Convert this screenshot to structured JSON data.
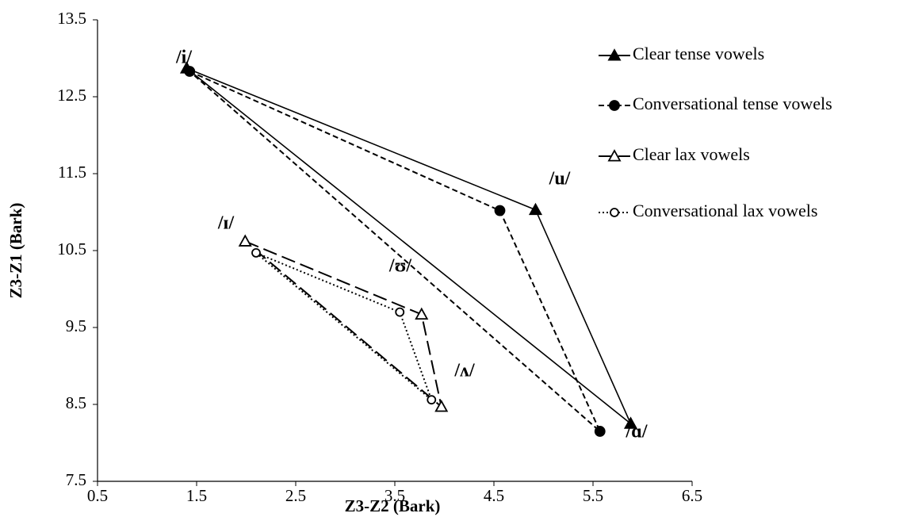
{
  "chart_data": {
    "type": "line",
    "xlabel": "Z3-Z2 (Bark)",
    "ylabel": "Z3-Z1 (Bark)",
    "xlim": [
      0.5,
      6.5
    ],
    "xticks": [
      0.5,
      1.5,
      2.5,
      3.5,
      4.5,
      5.5,
      6.5
    ],
    "ylim": [
      7.5,
      13.5
    ],
    "yticks": [
      7.5,
      8.5,
      9.5,
      10.5,
      11.5,
      12.5,
      13.5
    ],
    "grid": false,
    "legend": "right",
    "closed": true,
    "series": [
      {
        "name": "Clear tense vowels",
        "color": "#000000",
        "line_style": "solid",
        "marker": "filled-triangle",
        "x": [
          1.4,
          4.92,
          5.88
        ],
        "values": [
          12.87,
          11.03,
          8.25
        ]
      },
      {
        "name": "Conversational tense vowels",
        "color": "#000000",
        "line_style": "dashed",
        "marker": "filled-circle",
        "x": [
          1.43,
          4.56,
          5.57
        ],
        "values": [
          12.83,
          11.02,
          8.15
        ]
      },
      {
        "name": "Clear lax vowels",
        "color": "#000000",
        "line_style": "long-dash",
        "marker": "open-triangle",
        "x": [
          1.99,
          3.77,
          3.97
        ],
        "values": [
          10.62,
          9.67,
          8.47
        ]
      },
      {
        "name": "Conversational lax vowels",
        "color": "#000000",
        "line_style": "dotted",
        "marker": "open-circle",
        "x": [
          2.1,
          3.55,
          3.87
        ],
        "values": [
          10.47,
          9.7,
          8.56
        ]
      }
    ],
    "annotations": [
      "/i/",
      "/u/",
      "/ɑ/",
      "/ɪ/",
      "/ʊ/",
      "/ʌ/"
    ]
  }
}
